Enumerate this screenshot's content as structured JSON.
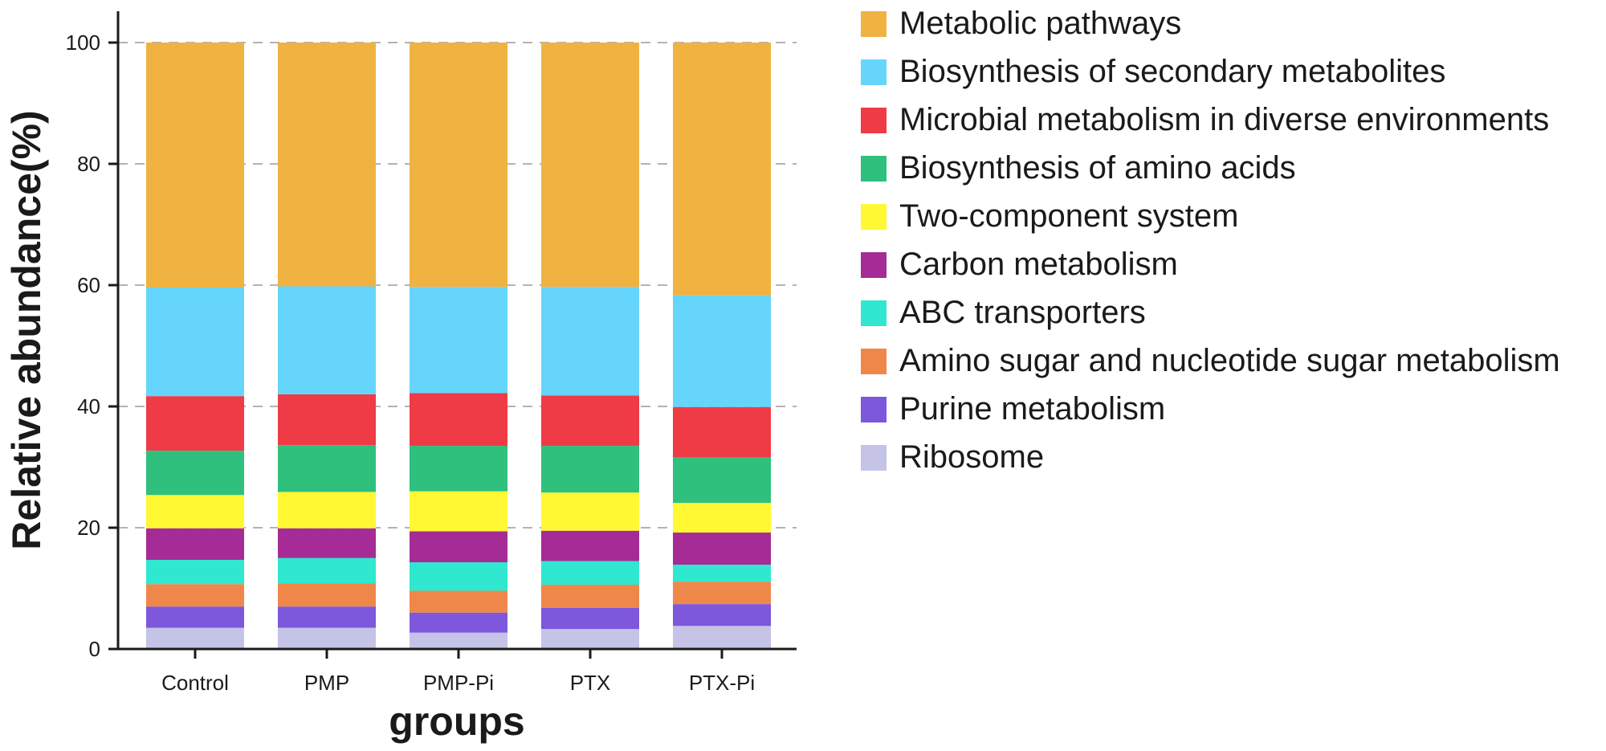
{
  "chart_data": {
    "type": "bar",
    "stacked": true,
    "title": "",
    "xlabel": "groups",
    "ylabel": "Relative abundance(%)",
    "ylim": [
      0,
      100
    ],
    "yticks": [
      0,
      20,
      40,
      60,
      80,
      100
    ],
    "grid": "dashed horizontal at ticks",
    "legend_position": "right",
    "categories": [
      "Control",
      "PMP",
      "PMP-Pi",
      "PTX",
      "PTX-Pi"
    ],
    "series": [
      {
        "name": "Ribosome",
        "color": "#c5c3e6",
        "values": [
          3.5,
          3.5,
          2.7,
          3.3,
          3.8
        ]
      },
      {
        "name": "Purine metabolism",
        "color": "#7d57dc",
        "values": [
          3.5,
          3.5,
          3.3,
          3.5,
          3.6
        ]
      },
      {
        "name": "Amino sugar and nucleotide sugar metabolism",
        "color": "#f0874a",
        "values": [
          3.7,
          3.8,
          3.6,
          3.8,
          3.7
        ]
      },
      {
        "name": "ABC transporters",
        "color": "#2fe8cf",
        "values": [
          4.0,
          4.2,
          4.7,
          3.9,
          2.8
        ]
      },
      {
        "name": "Carbon metabolism",
        "color": "#a52b96",
        "values": [
          5.2,
          4.9,
          5.1,
          5.0,
          5.3
        ]
      },
      {
        "name": "Two-component system",
        "color": "#fff833",
        "values": [
          5.5,
          6.0,
          6.6,
          6.3,
          4.9
        ]
      },
      {
        "name": "Biosynthesis of amino acids",
        "color": "#2fc07d",
        "values": [
          7.3,
          7.7,
          7.5,
          7.7,
          7.5
        ]
      },
      {
        "name": "Microbial metabolism in diverse environments",
        "color": "#ee3b46",
        "values": [
          9.0,
          8.4,
          8.7,
          8.3,
          8.3
        ]
      },
      {
        "name": "Biosynthesis of secondary metabolites",
        "color": "#66d5fc",
        "values": [
          17.9,
          17.8,
          17.5,
          17.9,
          18.4
        ]
      },
      {
        "name": "Metabolic pathways",
        "color": "#f0b241",
        "values": [
          40.4,
          40.2,
          40.3,
          40.3,
          41.7
        ]
      }
    ],
    "legend_order": [
      "Metabolic pathways",
      "Biosynthesis of secondary metabolites",
      "Microbial metabolism in diverse environments",
      "Biosynthesis of amino acids",
      "Two-component system",
      "Carbon metabolism",
      "ABC transporters",
      "Amino sugar and nucleotide sugar metabolism",
      "Purine metabolism",
      "Ribosome"
    ]
  }
}
